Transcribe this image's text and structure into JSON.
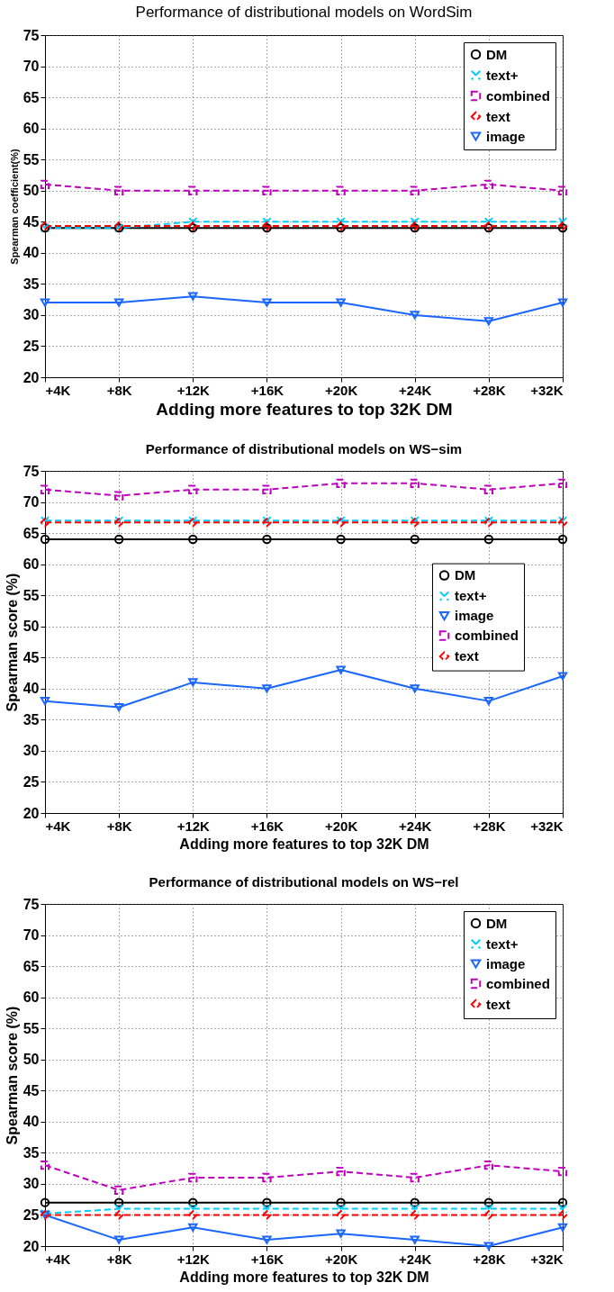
{
  "chart_data": [
    {
      "type": "line",
      "title": "Performance of distributional models on WordSim",
      "xlabel": "Adding more features to top 32K DM",
      "ylabel": "Spearman coefficient(%)",
      "categories": [
        "+4K",
        "+8K",
        "+12K",
        "+16K",
        "+20K",
        "+24K",
        "+28K",
        "+32K"
      ],
      "ylim": [
        20,
        75
      ],
      "yticks": [
        20,
        25,
        30,
        35,
        40,
        45,
        50,
        55,
        60,
        65,
        70,
        75
      ],
      "grid": true,
      "legend": "top right",
      "series": [
        {
          "name": "DM",
          "color": "#000000",
          "marker": "circle",
          "line_style": "solid",
          "values": [
            44,
            44,
            44,
            44,
            44,
            44,
            44,
            44
          ]
        },
        {
          "name": "text+",
          "color": "#00ccff",
          "marker": "cross",
          "line_style": "dashed",
          "values": [
            44,
            44,
            45,
            45,
            45,
            45,
            45,
            45
          ]
        },
        {
          "name": "combined",
          "color": "#bf00bf",
          "marker": "square",
          "line_style": "dashed",
          "values": [
            51,
            50,
            50,
            50,
            50,
            50,
            51,
            50
          ]
        },
        {
          "name": "text",
          "color": "#ff0000",
          "marker": "diamond",
          "line_style": "dashed",
          "values": [
            44.3,
            44.3,
            44.3,
            44.3,
            44.3,
            44.3,
            44.3,
            44.3
          ]
        },
        {
          "name": "image",
          "color": "#1a66ff",
          "marker": "triangle",
          "line_style": "solid",
          "values": [
            32,
            32,
            33,
            32,
            32,
            30,
            29,
            32
          ]
        }
      ]
    },
    {
      "type": "line",
      "title": "Performance of distributional models on WS−sim",
      "xlabel": "Adding more features to top 32K DM",
      "ylabel": "Spearman score (%)",
      "categories": [
        "+4K",
        "+8K",
        "+12K",
        "+16K",
        "+20K",
        "+24K",
        "+28K",
        "+32K"
      ],
      "ylim": [
        20,
        75
      ],
      "yticks": [
        20,
        25,
        30,
        35,
        40,
        45,
        50,
        55,
        60,
        65,
        70,
        75
      ],
      "grid": true,
      "legend": "right",
      "series": [
        {
          "name": "DM",
          "color": "#000000",
          "marker": "circle",
          "line_style": "solid",
          "values": [
            64,
            64,
            64,
            64,
            64,
            64,
            64,
            64
          ]
        },
        {
          "name": "text+",
          "color": "#00ccff",
          "marker": "cross",
          "line_style": "dashed",
          "values": [
            67,
            67,
            67,
            67,
            67,
            67,
            67,
            67
          ]
        },
        {
          "name": "image",
          "color": "#1a66ff",
          "marker": "triangle",
          "line_style": "solid",
          "values": [
            38,
            37,
            41,
            40,
            43,
            40,
            38,
            42
          ]
        },
        {
          "name": "combined",
          "color": "#bf00bf",
          "marker": "square",
          "line_style": "dashed",
          "values": [
            72,
            71,
            72,
            72,
            73,
            73,
            72,
            73
          ]
        },
        {
          "name": "text",
          "color": "#ff0000",
          "marker": "diamond",
          "line_style": "dashed",
          "values": [
            66.7,
            66.7,
            66.7,
            66.7,
            66.7,
            66.7,
            66.7,
            66.7
          ]
        }
      ]
    },
    {
      "type": "line",
      "title": "Performance of distributional models on WS−rel",
      "xlabel": "Adding more features to top 32K DM",
      "ylabel": "Spearman score (%)",
      "categories": [
        "+4K",
        "+8K",
        "+12K",
        "+16K",
        "+20K",
        "+24K",
        "+28K",
        "+32K"
      ],
      "ylim": [
        20,
        75
      ],
      "yticks": [
        20,
        25,
        30,
        35,
        40,
        45,
        50,
        55,
        60,
        65,
        70,
        75
      ],
      "grid": true,
      "legend": "top right",
      "series": [
        {
          "name": "DM",
          "color": "#000000",
          "marker": "circle",
          "line_style": "solid",
          "values": [
            27,
            27,
            27,
            27,
            27,
            27,
            27,
            27
          ]
        },
        {
          "name": "text+",
          "color": "#00ccff",
          "marker": "cross",
          "line_style": "dashed",
          "values": [
            25.2,
            26,
            26,
            26,
            26,
            26,
            26,
            26
          ]
        },
        {
          "name": "image",
          "color": "#1a66ff",
          "marker": "triangle",
          "line_style": "solid",
          "values": [
            25,
            21,
            23,
            21,
            22,
            21,
            20,
            23
          ]
        },
        {
          "name": "combined",
          "color": "#bf00bf",
          "marker": "square",
          "line_style": "dashed",
          "values": [
            33,
            29,
            31,
            31,
            32,
            31,
            33,
            32
          ]
        },
        {
          "name": "text",
          "color": "#ff0000",
          "marker": "diamond",
          "line_style": "dashed",
          "values": [
            25,
            25,
            25,
            25,
            25,
            25,
            25,
            25
          ]
        }
      ]
    }
  ]
}
